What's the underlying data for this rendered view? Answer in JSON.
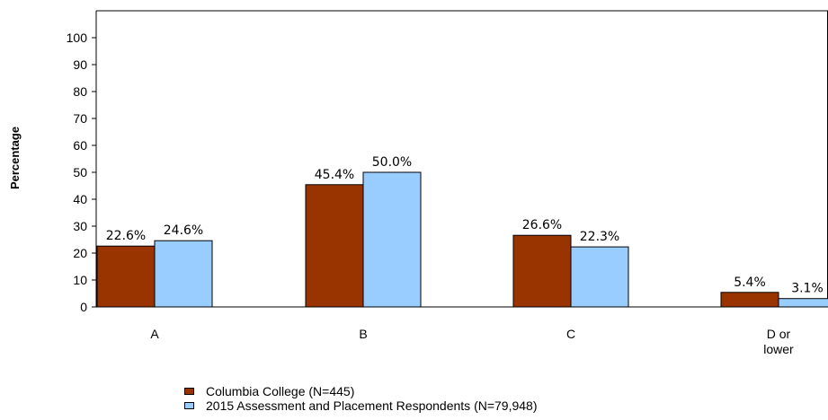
{
  "chart_data": {
    "type": "bar",
    "ylabel": "Percentage",
    "xlabel": "",
    "ylim": [
      0,
      110
    ],
    "yticks": [
      0,
      10,
      20,
      30,
      40,
      50,
      60,
      70,
      80,
      90,
      100
    ],
    "categories": [
      [
        "A"
      ],
      [
        "B"
      ],
      [
        "C"
      ],
      [
        "D or",
        "lower"
      ]
    ],
    "series": [
      {
        "name": "Columbia College (N=445)",
        "color": "#993300",
        "values": [
          22.6,
          45.4,
          26.6,
          5.4
        ],
        "labels": [
          "22.6%",
          "45.4%",
          "26.6%",
          "5.4%"
        ]
      },
      {
        "name": "2015 Assessment and Placement Respondents (N=79,948)",
        "color": "#99CCFF",
        "values": [
          24.6,
          50.0,
          22.3,
          3.1
        ],
        "labels": [
          "24.6%",
          "50.0%",
          "22.3%",
          "3.1%"
        ]
      }
    ],
    "legend_position": "bottom",
    "grid": false
  }
}
